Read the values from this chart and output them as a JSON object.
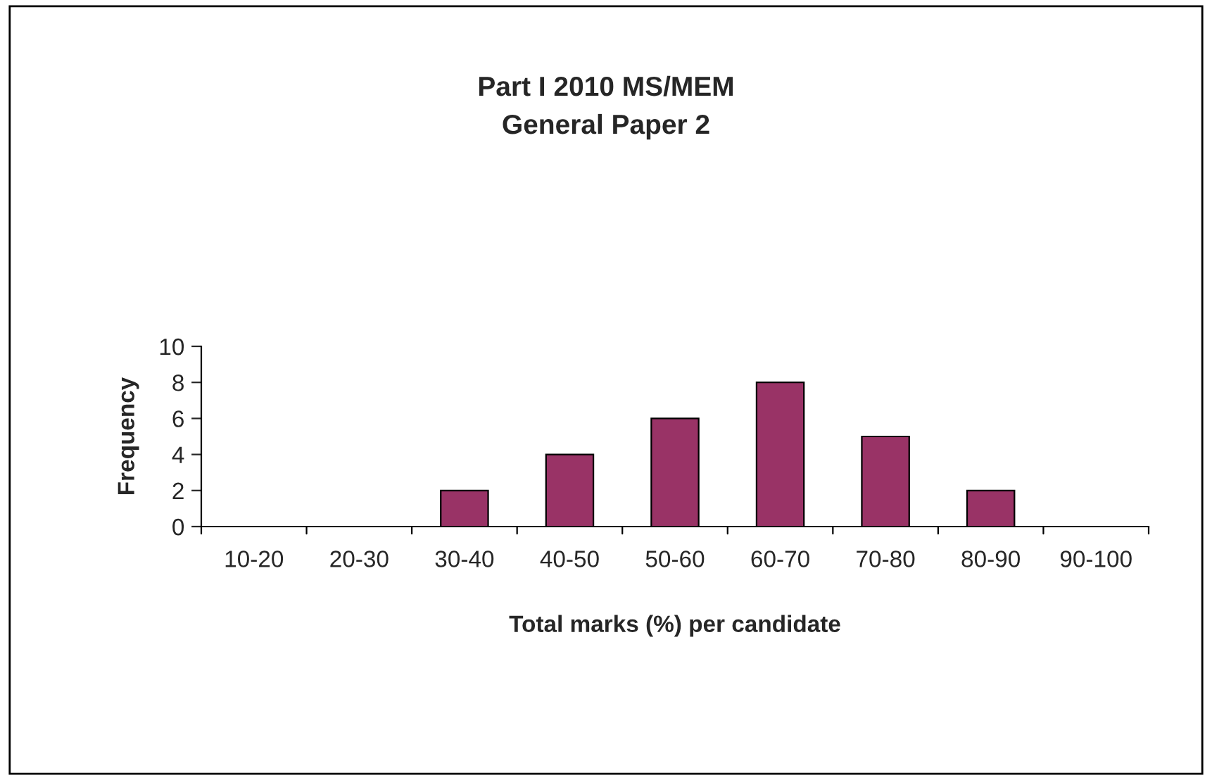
{
  "chart_data": {
    "type": "bar",
    "title": "Part I 2010 MS/MEM",
    "subtitle": "General Paper 2",
    "xlabel": "Total marks (%) per candidate",
    "ylabel": "Frequency",
    "categories": [
      "10-20",
      "20-30",
      "30-40",
      "40-50",
      "50-60",
      "60-70",
      "70-80",
      "80-90",
      "90-100"
    ],
    "values": [
      0,
      0,
      2,
      4,
      6,
      8,
      5,
      2,
      0
    ],
    "color": "#993366",
    "ylim": [
      0,
      10
    ],
    "yticks": [
      0,
      2,
      4,
      6,
      8,
      10
    ],
    "grid": false,
    "legend": false
  }
}
